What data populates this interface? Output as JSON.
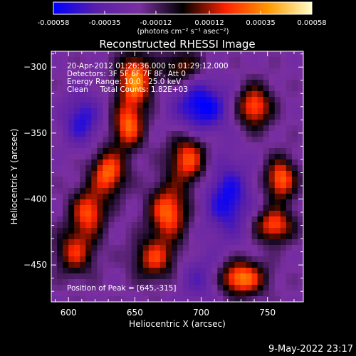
{
  "colorbar": {
    "tick_labels": [
      "-0.00058",
      "-0.00035",
      "-0.00012",
      "0.00012",
      "0.00035",
      "0.00058"
    ],
    "units_label": "(photons cm⁻² s⁻¹ asec⁻²)",
    "range": [
      -0.00058,
      0.00058
    ],
    "colors": [
      "#0000ff",
      "#5a1fa8",
      "#7a2fa0",
      "#000000",
      "#ff2200",
      "#ff9a00",
      "#ffffc8"
    ]
  },
  "chart_data": {
    "type": "heatmap",
    "title": "Reconstructed RHESSI Image",
    "xlabel": "Heliocentric X (arcsec)",
    "ylabel": "Heliocentric Y (arcsec)",
    "xlim": [
      587,
      777
    ],
    "ylim": [
      -478,
      -288
    ],
    "xticks": [
      600,
      650,
      700,
      750
    ],
    "yticks": [
      -300,
      -350,
      -400,
      -450
    ],
    "annotations": [
      "20-Apr-2012 01:26:36.000 to 01:29:12.000",
      "Detectors: 3F 5F 6F 7F 8F, Att 0",
      "Energy Range: 10.0 - 25.0 keV",
      "Clean     Total Counts: 1.82E+03",
      "Position of Peak = [645,-315]"
    ],
    "peak": [
      645,
      -315
    ],
    "sources": [
      {
        "x": 650,
        "y": -310,
        "amp": 0.00056,
        "sx": 9,
        "sy": 14
      },
      {
        "x": 645,
        "y": -345,
        "amp": 0.00048,
        "sx": 8,
        "sy": 12
      },
      {
        "x": 630,
        "y": -380,
        "amp": 0.0005,
        "sx": 9,
        "sy": 12
      },
      {
        "x": 615,
        "y": -410,
        "amp": 0.00045,
        "sx": 9,
        "sy": 12
      },
      {
        "x": 605,
        "y": -440,
        "amp": 0.00038,
        "sx": 10,
        "sy": 12
      },
      {
        "x": 690,
        "y": -370,
        "amp": 0.00046,
        "sx": 10,
        "sy": 13
      },
      {
        "x": 675,
        "y": -410,
        "amp": 0.0005,
        "sx": 10,
        "sy": 14
      },
      {
        "x": 665,
        "y": -445,
        "amp": 0.0004,
        "sx": 11,
        "sy": 11
      },
      {
        "x": 740,
        "y": -330,
        "amp": 0.00048,
        "sx": 9,
        "sy": 11
      },
      {
        "x": 760,
        "y": -385,
        "amp": 0.0005,
        "sx": 8,
        "sy": 11
      },
      {
        "x": 755,
        "y": -420,
        "amp": 0.00046,
        "sx": 10,
        "sy": 9
      },
      {
        "x": 730,
        "y": -460,
        "amp": 0.00056,
        "sx": 12,
        "sy": 9
      },
      {
        "x": 685,
        "y": -300,
        "amp": 0.0003,
        "sx": 11,
        "sy": 9
      },
      {
        "x": 700,
        "y": -330,
        "amp": -0.0004,
        "sx": 14,
        "sy": 14
      },
      {
        "x": 720,
        "y": -400,
        "amp": -0.00035,
        "sx": 12,
        "sy": 20
      },
      {
        "x": 610,
        "y": -340,
        "amp": -0.0003,
        "sx": 10,
        "sy": 14
      },
      {
        "x": 700,
        "y": -460,
        "amp": -0.0002,
        "sx": 12,
        "sy": 12
      }
    ]
  },
  "timestamp": "9-May-2022 23:17"
}
